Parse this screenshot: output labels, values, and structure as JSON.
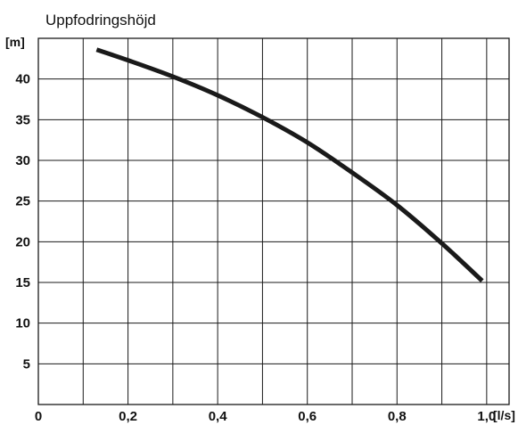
{
  "chart_data": {
    "type": "line",
    "title": "Uppfodringshöjd",
    "ylabel": "[m]",
    "xlabel": "[l/s]",
    "xlim": [
      0,
      1.05
    ],
    "ylim": [
      0,
      45
    ],
    "grid": true,
    "x_tick_values": [
      0,
      0.2,
      0.4,
      0.6,
      0.8,
      1.0
    ],
    "x_tick_labels": [
      "0",
      "0,2",
      "0,4",
      "0,6",
      "0,8",
      "1,0"
    ],
    "y_tick_values": [
      5,
      10,
      15,
      20,
      25,
      30,
      35,
      40
    ],
    "y_tick_labels": [
      "5",
      "10",
      "15",
      "20",
      "25",
      "30",
      "35",
      "40"
    ],
    "line_color": "#1a1a1a",
    "series": [
      {
        "x": [
          0.13,
          0.2,
          0.3,
          0.4,
          0.5,
          0.6,
          0.7,
          0.8,
          0.9,
          0.99
        ],
        "y": [
          43.6,
          42.3,
          40.3,
          38.0,
          35.3,
          32.2,
          28.5,
          24.5,
          19.8,
          15.2
        ]
      }
    ]
  }
}
